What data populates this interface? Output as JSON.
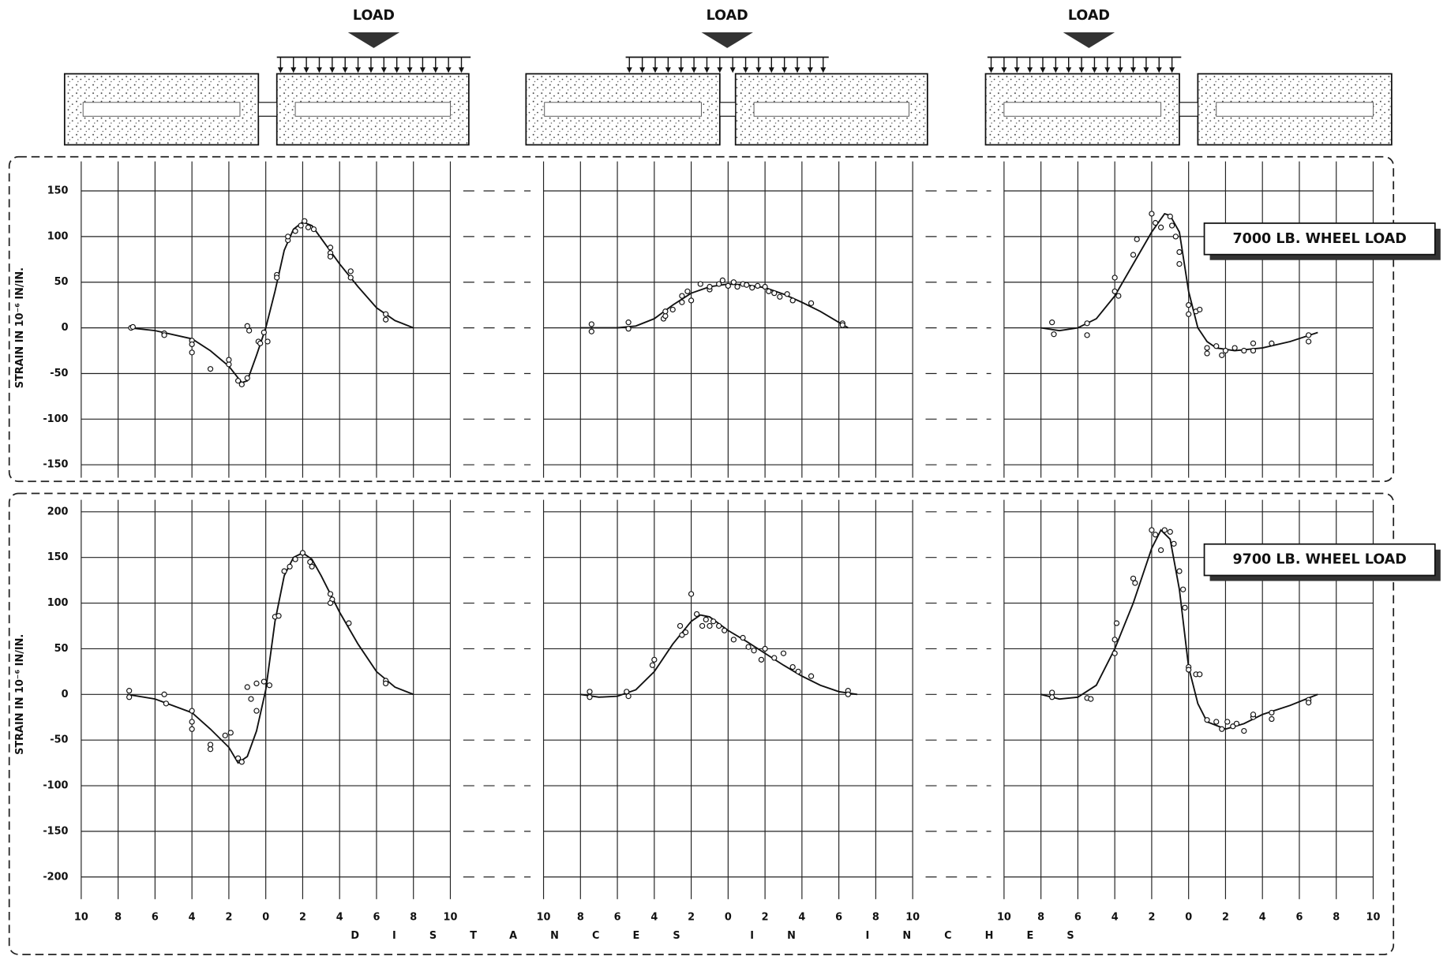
{
  "loads": [
    "LOAD",
    "LOAD",
    "LOAD"
  ],
  "x_label": "DISTANCES IN INCHES",
  "chart_data": [
    {
      "type": "line",
      "x": [
        -7.4,
        -6,
        -4,
        -3,
        -2,
        -1.3,
        -1,
        -0.5,
        0,
        0.5,
        1,
        1.5,
        2,
        2.5,
        3,
        4,
        5,
        6,
        7,
        8
      ],
      "values": [
        0,
        -3,
        -12,
        -25,
        -42,
        -60,
        -58,
        -30,
        0,
        40,
        85,
        108,
        116,
        112,
        98,
        70,
        45,
        22,
        8,
        0
      ],
      "points": {
        "x": [
          -7.3,
          -7.2,
          -5.5,
          -5.5,
          -4,
          -4,
          -4,
          -3,
          -2,
          -2,
          -1.5,
          -1.3,
          -1,
          -1,
          -0.9,
          -0.4,
          -0.3,
          -0.1,
          0.1,
          0.6,
          0.6,
          1.2,
          1.2,
          1.6,
          1.9,
          2.1,
          2.3,
          2.6,
          3.5,
          3.5,
          3.5,
          4.6,
          4.6,
          6.5,
          6.5
        ],
        "values": [
          0,
          1,
          -6,
          -8,
          -14,
          -18,
          -27,
          -45,
          -40,
          -35,
          -58,
          -62,
          -55,
          2,
          -3,
          -15,
          -17,
          -5,
          -15,
          58,
          55,
          96,
          100,
          106,
          112,
          117,
          110,
          108,
          88,
          82,
          78,
          62,
          55,
          15,
          9
        ]
      },
      "xlim": [
        -10,
        10
      ],
      "xticks": [
        {
          "value": -10,
          "label": "10"
        },
        {
          "value": -8,
          "label": "8"
        },
        {
          "value": -6,
          "label": "6"
        },
        {
          "value": -4,
          "label": "4"
        },
        {
          "value": -2,
          "label": "2"
        },
        0,
        2,
        4,
        6,
        8,
        10
      ],
      "xtick_labels": false,
      "ylim": [
        -150,
        150
      ],
      "yticks": [
        -150,
        -100,
        -50,
        0,
        50,
        100,
        150
      ],
      "ytick_labels": true,
      "ylabel": "STRAIN IN 10⁻⁶ IN/IN.",
      "color": "#111111"
    },
    {
      "type": "line",
      "x": [
        -8,
        -6,
        -5,
        -4,
        -3,
        -2,
        -1,
        0,
        1,
        2,
        3,
        4,
        5,
        6,
        6.5
      ],
      "values": [
        0,
        0,
        2,
        10,
        25,
        38,
        45,
        48,
        47,
        44,
        37,
        28,
        18,
        6,
        0
      ],
      "points": {
        "x": [
          -7.4,
          -7.4,
          -5.4,
          -5.4,
          -3.5,
          -3.4,
          -3.4,
          -3,
          -2.5,
          -2.5,
          -2.2,
          -2,
          -1.5,
          -1,
          -1,
          -0.5,
          -0.3,
          0,
          0.3,
          0.5,
          0.8,
          1,
          1.3,
          1.6,
          2,
          2.2,
          2.5,
          2.8,
          3.2,
          3.5,
          4.5,
          6.2,
          6.2
        ],
        "values": [
          4,
          -4,
          6,
          -1,
          10,
          13,
          18,
          20,
          28,
          35,
          40,
          30,
          48,
          42,
          45,
          48,
          52,
          46,
          50,
          45,
          48,
          47,
          44,
          46,
          45,
          40,
          38,
          34,
          37,
          30,
          27,
          5,
          3
        ]
      },
      "xlim": [
        -10,
        10
      ],
      "xticks": [
        {
          "value": -10,
          "label": "10"
        },
        {
          "value": -8,
          "label": "8"
        },
        {
          "value": -6,
          "label": "6"
        },
        {
          "value": -4,
          "label": "4"
        },
        {
          "value": -2,
          "label": "2"
        },
        0,
        2,
        4,
        6,
        8,
        10
      ],
      "xtick_labels": false,
      "ylim": [
        -150,
        150
      ],
      "yticks": [
        -150,
        -100,
        -50,
        0,
        50,
        100,
        150
      ],
      "ytick_labels": false,
      "color": "#111111"
    },
    {
      "type": "line",
      "x": [
        -8,
        -7,
        -6,
        -5,
        -4,
        -3,
        -2,
        -1.3,
        -1,
        -0.5,
        0,
        0.5,
        1,
        1.5,
        2.5,
        4,
        5.5,
        7
      ],
      "values": [
        0,
        -3,
        0,
        10,
        35,
        70,
        105,
        125,
        123,
        105,
        40,
        0,
        -15,
        -22,
        -25,
        -22,
        -15,
        -5
      ],
      "points": {
        "x": [
          -7.4,
          -7.3,
          -5.5,
          -5.5,
          -4,
          -4,
          -3.8,
          -3,
          -2.8,
          -2,
          -1.8,
          -1.5,
          -1,
          -0.9,
          -0.7,
          -0.5,
          -0.5,
          0,
          0,
          0.4,
          0.6,
          1,
          1,
          1.5,
          1.8,
          2,
          2.5,
          3,
          3.5,
          3.5,
          4.5,
          6.5,
          6.5
        ],
        "values": [
          6,
          -7,
          5,
          -8,
          55,
          40,
          35,
          80,
          97,
          125,
          115,
          110,
          122,
          112,
          100,
          83,
          70,
          25,
          15,
          18,
          20,
          -22,
          -28,
          -20,
          -30,
          -25,
          -22,
          -25,
          -17,
          -25,
          -17,
          -8,
          -15
        ]
      },
      "xlim": [
        -10,
        10
      ],
      "xticks": [
        {
          "value": -10,
          "label": "10"
        },
        {
          "value": -8,
          "label": "8"
        },
        {
          "value": -6,
          "label": "6"
        },
        {
          "value": -4,
          "label": "4"
        },
        {
          "value": -2,
          "label": "2"
        },
        0,
        2,
        4,
        6,
        8,
        10
      ],
      "xtick_labels": false,
      "ylim": [
        -150,
        150
      ],
      "yticks": [
        -150,
        -100,
        -50,
        0,
        50,
        100,
        150
      ],
      "ytick_labels": false,
      "annotation": "7000 LB. WHEEL LOAD",
      "color": "#111111"
    },
    {
      "type": "line",
      "x": [
        -7.5,
        -6,
        -4,
        -3,
        -2,
        -1.5,
        -1,
        -0.5,
        0,
        0.5,
        1,
        1.5,
        2,
        2.5,
        3,
        4,
        5,
        6,
        7,
        8
      ],
      "values": [
        0,
        -5,
        -20,
        -38,
        -58,
        -75,
        -68,
        -40,
        5,
        80,
        130,
        150,
        155,
        148,
        130,
        90,
        55,
        25,
        8,
        0
      ],
      "points": {
        "x": [
          -7.4,
          -7.4,
          -5.5,
          -5.4,
          -4,
          -4,
          -4,
          -3,
          -3,
          -2.2,
          -1.9,
          -1.5,
          -1.3,
          -1,
          -0.8,
          -0.5,
          -0.5,
          -0.1,
          0.2,
          0.5,
          0.7,
          1,
          1.3,
          1.6,
          2,
          2.4,
          2.5,
          3.5,
          3.6,
          3.5,
          4.5,
          6.5,
          6.5
        ],
        "values": [
          4,
          -3,
          0,
          -10,
          -18,
          -30,
          -38,
          -55,
          -60,
          -45,
          -42,
          -70,
          -74,
          8,
          -5,
          12,
          -18,
          14,
          10,
          85,
          86,
          135,
          140,
          148,
          155,
          145,
          140,
          110,
          104,
          100,
          78,
          15,
          12
        ]
      },
      "xlim": [
        -10,
        10
      ],
      "xticks": [
        {
          "value": -10,
          "label": "10"
        },
        {
          "value": -8,
          "label": "8"
        },
        {
          "value": -6,
          "label": "6"
        },
        {
          "value": -4,
          "label": "4"
        },
        {
          "value": -2,
          "label": "2"
        },
        0,
        2,
        4,
        6,
        8,
        10
      ],
      "xtick_labels": true,
      "ylim": [
        -200,
        200
      ],
      "yticks": [
        -200,
        -150,
        -100,
        -50,
        0,
        50,
        100,
        150,
        200
      ],
      "ytick_labels": true,
      "ylabel": "STRAIN IN 10⁻⁶ IN/IN.",
      "color": "#111111"
    },
    {
      "type": "line",
      "x": [
        -8,
        -7,
        -6,
        -5,
        -4,
        -3,
        -2,
        -1.5,
        -1,
        0,
        1,
        2,
        3,
        4,
        5,
        6,
        7
      ],
      "values": [
        0,
        -3,
        -2,
        5,
        25,
        55,
        80,
        87,
        85,
        70,
        58,
        45,
        32,
        20,
        10,
        3,
        0
      ],
      "points": {
        "x": [
          -7.5,
          -7.5,
          -5.5,
          -5.4,
          -4.1,
          -4,
          -2.6,
          -2.5,
          -2.3,
          -2,
          -1.7,
          -1.4,
          -1.2,
          -1,
          -0.8,
          -0.5,
          -0.2,
          0.3,
          0.8,
          1.1,
          1.4,
          1.8,
          2,
          2.5,
          3,
          3.5,
          3.8,
          4.5,
          6.5,
          6.5
        ],
        "values": [
          3,
          -3,
          3,
          -2,
          32,
          38,
          75,
          65,
          68,
          110,
          88,
          75,
          82,
          75,
          80,
          75,
          70,
          60,
          62,
          52,
          48,
          38,
          50,
          40,
          45,
          30,
          25,
          20,
          4,
          0
        ]
      },
      "xlim": [
        -10,
        10
      ],
      "xticks": [
        {
          "value": -10,
          "label": "10"
        },
        {
          "value": -8,
          "label": "8"
        },
        {
          "value": -6,
          "label": "6"
        },
        {
          "value": -4,
          "label": "4"
        },
        {
          "value": -2,
          "label": "2"
        },
        0,
        2,
        4,
        6,
        8,
        10
      ],
      "xtick_labels": true,
      "ylim": [
        -200,
        200
      ],
      "yticks": [
        -200,
        -150,
        -100,
        -50,
        0,
        50,
        100,
        150,
        200
      ],
      "ytick_labels": false,
      "color": "#111111"
    },
    {
      "type": "line",
      "x": [
        -8,
        -7,
        -6,
        -5,
        -4,
        -3,
        -2,
        -1.5,
        -1,
        -0.5,
        0,
        0.5,
        1,
        2,
        3,
        4,
        5.5,
        7
      ],
      "values": [
        0,
        -5,
        -3,
        10,
        50,
        100,
        160,
        180,
        170,
        115,
        30,
        -10,
        -30,
        -38,
        -32,
        -22,
        -12,
        0
      ],
      "points": {
        "x": [
          -7.4,
          -7.4,
          -5.5,
          -5.3,
          -4,
          -4,
          -3.9,
          -3,
          -2.9,
          -2,
          -1.8,
          -1.5,
          -1.3,
          -1,
          -0.8,
          -0.5,
          -0.3,
          -0.2,
          0,
          0,
          0.4,
          0.6,
          1,
          1.5,
          1.8,
          2.1,
          2.4,
          2.6,
          3,
          3.5,
          3.5,
          4.5,
          4.5,
          6.5,
          6.5
        ],
        "values": [
          2,
          -3,
          -4,
          -5,
          60,
          45,
          78,
          127,
          122,
          180,
          175,
          158,
          180,
          178,
          165,
          135,
          115,
          95,
          30,
          27,
          22,
          22,
          -28,
          -30,
          -38,
          -30,
          -35,
          -32,
          -40,
          -25,
          -22,
          -20,
          -27,
          -6,
          -9
        ]
      },
      "xlim": [
        -10,
        10
      ],
      "xticks": [
        {
          "value": -10,
          "label": "10"
        },
        {
          "value": -8,
          "label": "8"
        },
        {
          "value": -6,
          "label": "6"
        },
        {
          "value": -4,
          "label": "4"
        },
        {
          "value": -2,
          "label": "2"
        },
        0,
        2,
        4,
        6,
        8,
        10
      ],
      "xtick_labels": true,
      "ylim": [
        -200,
        200
      ],
      "yticks": [
        -200,
        -150,
        -100,
        -50,
        0,
        50,
        100,
        150,
        200
      ],
      "ytick_labels": false,
      "annotation": "9700 LB. WHEEL LOAD",
      "color": "#111111"
    }
  ]
}
